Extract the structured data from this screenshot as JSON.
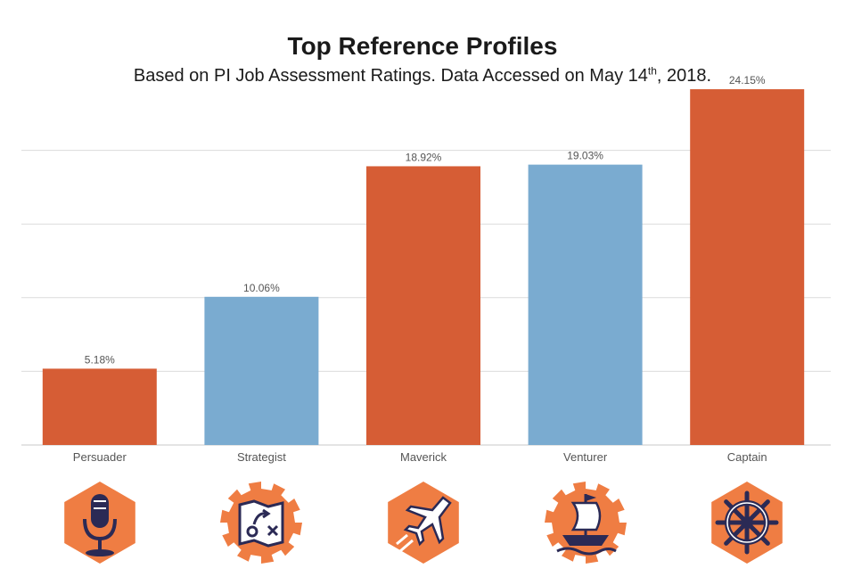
{
  "title": "Top Reference Profiles",
  "subtitle": {
    "before": "Based on PI Job Assessment Ratings. Data Accessed on May 14",
    "sup": "th",
    "after": ", 2018."
  },
  "chart_data": {
    "type": "bar",
    "categories": [
      "Persuader",
      "Strategist",
      "Maverick",
      "Venturer",
      "Captain"
    ],
    "values": [
      5.18,
      10.06,
      18.92,
      19.03,
      24.15
    ],
    "value_labels": [
      "5.18%",
      "10.06%",
      "18.92%",
      "19.03%",
      "24.15%"
    ],
    "bar_colors": [
      "#d65d35",
      "#7aabd0",
      "#d65d35",
      "#7aabd0",
      "#d65d35"
    ],
    "ylim": [
      0,
      25
    ],
    "grid": true,
    "y_tick_labels_shown": false
  },
  "icons": [
    {
      "category": "Persuader",
      "name": "microphone-icon",
      "bg": "#ef7d43",
      "shape": "hexagon"
    },
    {
      "category": "Strategist",
      "name": "strategy-map-icon",
      "bg": "#ef7d43",
      "shape": "gear"
    },
    {
      "category": "Maverick",
      "name": "jet-icon",
      "bg": "#ef7d43",
      "shape": "hexagon"
    },
    {
      "category": "Venturer",
      "name": "ship-icon",
      "bg": "#ef7d43",
      "shape": "gear"
    },
    {
      "category": "Captain",
      "name": "ship-wheel-icon",
      "bg": "#ef7d43",
      "shape": "hexagon"
    }
  ],
  "colors": {
    "grid": "#dcdcdc",
    "axis": "#c8c8c8",
    "label": "#555555",
    "icon_dark": "#2b2a55"
  }
}
